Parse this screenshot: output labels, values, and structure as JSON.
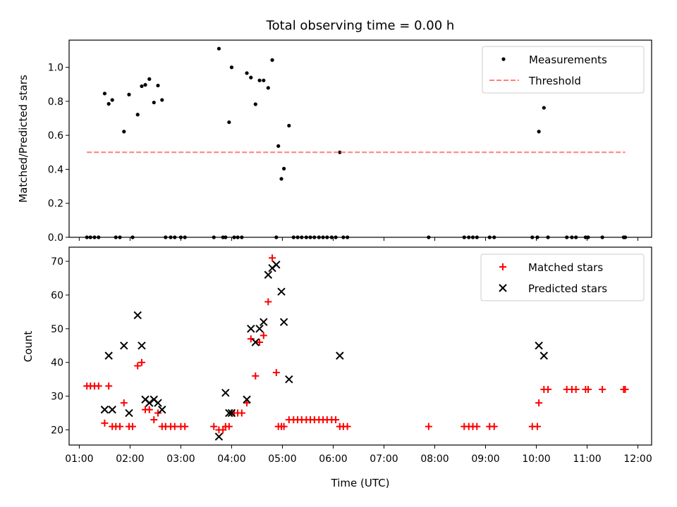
{
  "title": "Total observing time = 0.00 h",
  "chart_data": [
    {
      "type": "scatter",
      "title": "Total observing time = 0.00 h",
      "xlabel": "",
      "ylabel": "Matched/Predicted stars",
      "xlim": [
        0.8,
        12.27
      ],
      "ylim": [
        0.0,
        1.16
      ],
      "y_ticks": [
        0.0,
        0.2,
        0.4,
        0.6,
        0.8,
        1.0
      ],
      "y_tick_labels": [
        "0.0",
        "0.2",
        "0.4",
        "0.6",
        "0.8",
        "1.0"
      ],
      "grid": false,
      "legend": "upper right",
      "legend_entries": [
        "Measurements",
        "Threshold"
      ],
      "series": [
        {
          "name": "Measurements",
          "marker": "dot",
          "color": "#000000",
          "x": [
            1.15,
            1.22,
            1.3,
            1.38,
            1.5,
            1.58,
            1.65,
            1.72,
            1.8,
            1.88,
            1.98,
            2.05,
            2.15,
            2.23,
            2.3,
            2.38,
            2.47,
            2.55,
            2.63,
            2.7,
            2.8,
            2.88,
            3.0,
            3.08,
            3.65,
            3.75,
            3.83,
            3.88,
            3.95,
            4.0,
            4.05,
            4.12,
            4.2,
            4.3,
            4.38,
            4.47,
            4.55,
            4.63,
            4.72,
            4.8,
            4.88,
            4.92,
            4.98,
            5.03,
            5.13,
            5.22,
            5.3,
            5.38,
            5.47,
            5.55,
            5.63,
            5.72,
            5.8,
            5.88,
            5.97,
            6.05,
            6.13,
            6.2,
            6.28,
            7.88,
            8.58,
            8.67,
            8.75,
            8.83,
            9.08,
            9.17,
            9.92,
            10.02,
            10.05,
            10.15,
            10.23,
            10.6,
            10.7,
            10.78,
            10.97,
            11.02,
            11.3,
            11.72,
            11.75
          ],
          "y": [
            0.0,
            0.0,
            0.0,
            0.0,
            0.846,
            0.785,
            0.808,
            0.0,
            0.0,
            0.622,
            0.84,
            0.0,
            0.722,
            0.889,
            0.897,
            0.931,
            0.793,
            0.893,
            0.808,
            0.0,
            0.0,
            0.0,
            0.0,
            0.0,
            0.0,
            1.11,
            0.0,
            0.0,
            0.677,
            1.0,
            0.0,
            0.0,
            0.0,
            0.966,
            0.94,
            0.783,
            0.923,
            0.923,
            0.879,
            1.043,
            0.0,
            0.537,
            0.344,
            0.404,
            0.657,
            0.0,
            0.0,
            0.0,
            0.0,
            0.0,
            0.0,
            0.0,
            0.0,
            0.0,
            0.0,
            0.0,
            0.5,
            0.0,
            0.0,
            0.0,
            0.0,
            0.0,
            0.0,
            0.0,
            0.0,
            0.0,
            0.0,
            0.0,
            0.622,
            0.762,
            0.0,
            0.0,
            0.0,
            0.0,
            0.0,
            0.0,
            0.0,
            0.0,
            0.0
          ]
        },
        {
          "name": "Threshold",
          "type": "line",
          "style": "dashed",
          "color": "#ff7f7f",
          "x": [
            1.15,
            11.75
          ],
          "y": [
            0.5,
            0.5
          ]
        }
      ]
    },
    {
      "type": "scatter",
      "xlabel": "Time (UTC)",
      "ylabel": "Count",
      "xlim": [
        0.8,
        12.27
      ],
      "ylim": [
        15.5,
        74.2
      ],
      "x_ticks": [
        1,
        2,
        3,
        4,
        5,
        6,
        7,
        8,
        9,
        10,
        11,
        12
      ],
      "x_tick_labels": [
        "01:00",
        "02:00",
        "03:00",
        "04:00",
        "05:00",
        "06:00",
        "07:00",
        "08:00",
        "09:00",
        "10:00",
        "11:00",
        "12:00"
      ],
      "y_ticks": [
        20,
        30,
        40,
        50,
        60,
        70
      ],
      "y_tick_labels": [
        "20",
        "30",
        "40",
        "50",
        "60",
        "70"
      ],
      "grid": false,
      "legend": "upper right",
      "legend_entries": [
        "Matched stars",
        "Predicted stars"
      ],
      "series": [
        {
          "name": "Matched stars",
          "marker": "plus",
          "color": "#ff0000",
          "x": [
            1.15,
            1.22,
            1.3,
            1.38,
            1.5,
            1.58,
            1.65,
            1.72,
            1.8,
            1.88,
            1.98,
            2.05,
            2.15,
            2.23,
            2.3,
            2.38,
            2.47,
            2.55,
            2.63,
            2.7,
            2.8,
            2.88,
            3.0,
            3.08,
            3.65,
            3.75,
            3.83,
            3.88,
            3.95,
            4.0,
            4.05,
            4.12,
            4.2,
            4.3,
            4.38,
            4.47,
            4.55,
            4.63,
            4.72,
            4.8,
            4.88,
            4.92,
            4.98,
            5.03,
            5.13,
            5.22,
            5.3,
            5.38,
            5.47,
            5.55,
            5.63,
            5.72,
            5.8,
            5.88,
            5.97,
            6.05,
            6.13,
            6.2,
            6.28,
            7.88,
            8.58,
            8.67,
            8.75,
            8.83,
            9.08,
            9.17,
            9.92,
            10.02,
            10.05,
            10.15,
            10.23,
            10.6,
            10.7,
            10.78,
            10.97,
            11.02,
            11.3,
            11.72,
            11.75
          ],
          "y": [
            33,
            33,
            33,
            33,
            22,
            33,
            21,
            21,
            21,
            28,
            21,
            21,
            39,
            40,
            26,
            26,
            23,
            25,
            21,
            21,
            21,
            21,
            21,
            21,
            21,
            20,
            20,
            21,
            21,
            25,
            25,
            25,
            25,
            28,
            47,
            36,
            46,
            48,
            58,
            71,
            37,
            21,
            21,
            21,
            23,
            23,
            23,
            23,
            23,
            23,
            23,
            23,
            23,
            23,
            23,
            23,
            21,
            21,
            21,
            21,
            21,
            21,
            21,
            21,
            21,
            21,
            21,
            21,
            28,
            32,
            32,
            32,
            32,
            32,
            32,
            32,
            32,
            32,
            32
          ]
        },
        {
          "name": "Predicted stars",
          "marker": "x",
          "color": "#000000",
          "x": [
            1.5,
            1.58,
            1.65,
            1.88,
            1.98,
            2.15,
            2.23,
            2.3,
            2.38,
            2.47,
            2.55,
            2.63,
            3.75,
            3.88,
            3.95,
            4.0,
            4.3,
            4.38,
            4.47,
            4.55,
            4.63,
            4.72,
            4.8,
            4.88,
            4.98,
            5.03,
            5.13,
            6.13,
            10.05,
            10.15
          ],
          "y": [
            26,
            42,
            26,
            45,
            25,
            54,
            45,
            29,
            28,
            29,
            28,
            26,
            18,
            31,
            25,
            25,
            29,
            50,
            46,
            50,
            52,
            66,
            68,
            69,
            61,
            52,
            35,
            42,
            45,
            42
          ]
        }
      ]
    }
  ]
}
